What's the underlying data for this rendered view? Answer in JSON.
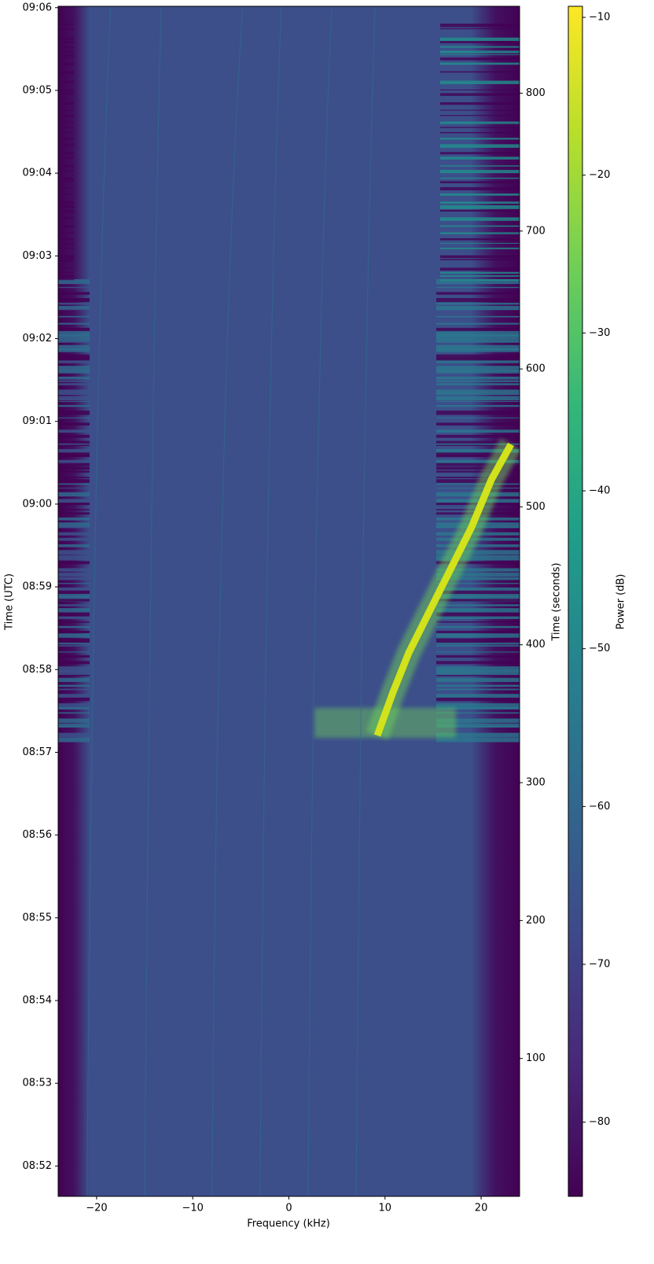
{
  "chart_data": {
    "type": "spectrogram",
    "xlabel": "Frequency (kHz)",
    "ylabel": "Time (UTC)",
    "y2label": "Time (seconds)",
    "colorbar_label": "Power (dB)",
    "xlim": [
      -24,
      24
    ],
    "xticks": [
      {
        "value": -20,
        "label": "−20"
      },
      {
        "value": -10,
        "label": "−10"
      },
      0,
      10,
      20
    ],
    "ylim": [
      0,
      863
    ],
    "yticks": [
      {
        "value": 22,
        "label": "08:52"
      },
      {
        "value": 82,
        "label": "08:53"
      },
      {
        "value": 142,
        "label": "08:54"
      },
      {
        "value": 202,
        "label": "08:55"
      },
      {
        "value": 262,
        "label": "08:56"
      },
      {
        "value": 322,
        "label": "08:57"
      },
      {
        "value": 382,
        "label": "08:58"
      },
      {
        "value": 442,
        "label": "08:59"
      },
      {
        "value": 502,
        "label": "09:00"
      },
      {
        "value": 562,
        "label": "09:01"
      },
      {
        "value": 622,
        "label": "09:02"
      },
      {
        "value": 682,
        "label": "09:03"
      },
      {
        "value": 742,
        "label": "09:04"
      },
      {
        "value": 802,
        "label": "09:05"
      },
      {
        "value": 862,
        "label": "09:06"
      }
    ],
    "y2lim": [
      0,
      863
    ],
    "y2ticks": [
      100,
      200,
      300,
      400,
      500,
      600,
      700,
      800
    ],
    "clim": [
      -84.7,
      -9.3
    ],
    "cticks": [
      {
        "value": -80,
        "label": "−80"
      },
      {
        "value": -70,
        "label": "−70"
      },
      {
        "value": -60,
        "label": "−60"
      },
      {
        "value": -50,
        "label": "−50"
      },
      {
        "value": -40,
        "label": "−40"
      },
      {
        "value": -30,
        "label": "−30"
      },
      {
        "value": -20,
        "label": "−20"
      },
      {
        "value": -10,
        "label": "−10"
      }
    ],
    "colormap": "viridis"
  }
}
